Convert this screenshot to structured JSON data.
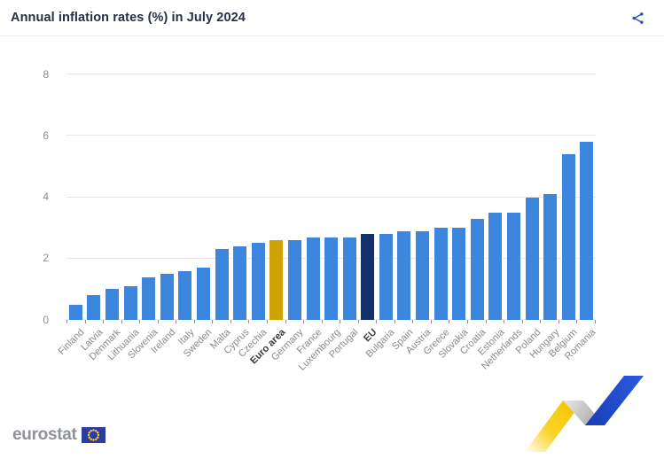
{
  "header": {
    "title": "Annual inflation rates (%) in July 2024"
  },
  "icons": {
    "share": "share-icon",
    "eu_flag": "eu-flag-icon",
    "decoration": "eurostat-ribbon-decoration"
  },
  "chart_data": {
    "type": "bar",
    "title": "Annual inflation rates (%) in July 2024",
    "unit": "%",
    "xlabel": "",
    "ylabel": "",
    "ylim": [
      0,
      8
    ],
    "yticks": [
      0,
      2,
      4,
      6,
      8
    ],
    "grid": true,
    "legend": "none",
    "categories": [
      "Finland",
      "Latvia",
      "Denmark",
      "Lithuania",
      "Slovenia",
      "Ireland",
      "Italy",
      "Sweden",
      "Malta",
      "Cyprus",
      "Czechia",
      "Euro area",
      "Germany",
      "France",
      "Luxembourg",
      "Portugal",
      "EU",
      "Bulgaria",
      "Spain",
      "Austria",
      "Greece",
      "Slovakia",
      "Croatia",
      "Estonia",
      "Netherlands",
      "Poland",
      "Hungary",
      "Belgium",
      "Romania"
    ],
    "values": [
      0.5,
      0.8,
      1.0,
      1.1,
      1.4,
      1.5,
      1.6,
      1.7,
      2.3,
      2.4,
      2.5,
      2.6,
      2.6,
      2.7,
      2.7,
      2.7,
      2.8,
      2.8,
      2.9,
      2.9,
      3.0,
      3.0,
      3.3,
      3.5,
      3.5,
      4.0,
      4.1,
      5.4,
      5.8
    ],
    "bar_types": [
      "member",
      "member",
      "member",
      "member",
      "member",
      "member",
      "member",
      "member",
      "member",
      "member",
      "member",
      "euro-area",
      "member",
      "member",
      "member",
      "member",
      "eu",
      "member",
      "member",
      "member",
      "member",
      "member",
      "member",
      "member",
      "member",
      "member",
      "member",
      "member",
      "member"
    ],
    "emphasized_categories": [
      "Euro area",
      "EU"
    ],
    "colors": {
      "member": "#3d86de",
      "euro_area": "#cfa306",
      "eu": "#12306b",
      "gridline": "#e8e8e8",
      "tick": "#a38c8c",
      "axis_label": "#8a8a8a",
      "emphasized_label": "#3b3b3b"
    }
  },
  "footer": {
    "logo_text": "eurostat"
  },
  "brand": {
    "title_color": "#252e4a",
    "share_icon_color": "#2b52c4",
    "logo_text_color": "#8f9296",
    "flag_blue": "#2d3ca2",
    "flag_star_yellow": "#ffd624",
    "ribbon_yellow": "#f9cd05",
    "ribbon_gray": "#bfbfbf",
    "ribbon_blue": "#1f4ccd"
  }
}
